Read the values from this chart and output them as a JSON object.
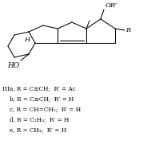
{
  "background_color": "#ffffff",
  "figsize": [
    1.99,
    1.81
  ],
  "dpi": 100,
  "labels": [
    "IIIa, R = C≡CH;  R’ = Ac",
    "    b, R = C≡CH;  R’ = H",
    "    c, R = CH=CH₂;  R’ = H",
    "    d, R = C₂H₅;  R’ = H",
    "    e, R = CH₃;  R’ = H"
  ],
  "label_fontsize": 5.2,
  "text_color": "#000000",
  "structure_color": "#000000",
  "lw": 0.75
}
